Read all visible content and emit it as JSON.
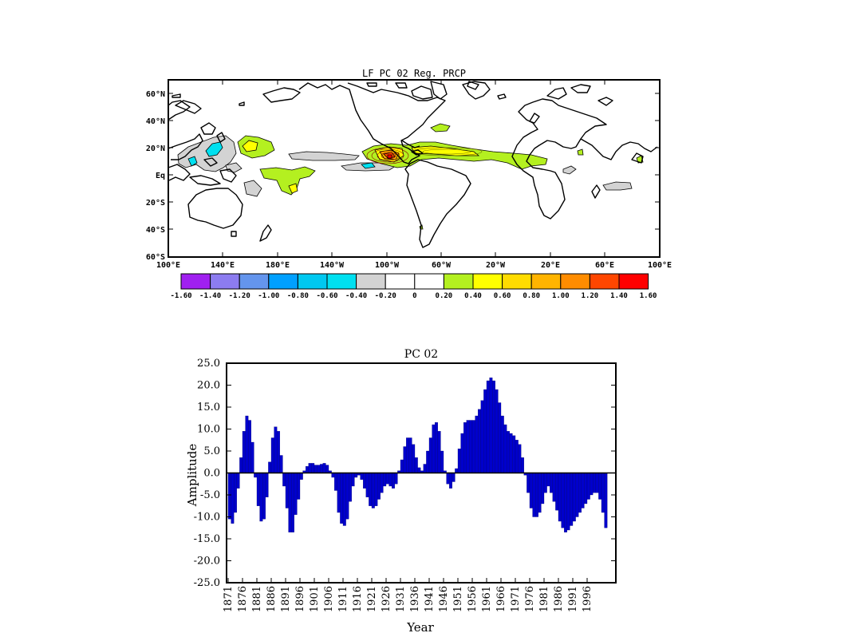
{
  "map_panel": {
    "title": "LF PC 02 Reg. PRCP",
    "lat_labels": [
      "60°N",
      "40°N",
      "20°N",
      "Eq",
      "20°S",
      "40°S",
      "60°S"
    ],
    "lon_labels": [
      "100°E",
      "140°E",
      "180°E",
      "140°W",
      "100°W",
      "60°W",
      "20°W",
      "20°E",
      "60°E",
      "100°E"
    ],
    "colorbar": {
      "colors": [
        "#a020f0",
        "#8c7cf0",
        "#6495ed",
        "#00a0ff",
        "#00c8f0",
        "#00e0f0",
        "#d3d3d3",
        "#ffffff",
        "#ffffff",
        "#b4f020",
        "#ffff00",
        "#ffdc00",
        "#ffb400",
        "#ff8c00",
        "#ff4600",
        "#ff0000"
      ],
      "tick_labels": [
        "-1.60",
        "-1.40",
        "-1.20",
        "-1.00",
        "-0.80",
        "-0.60",
        "-0.40",
        "-0.20",
        "0",
        "0.20",
        "0.40",
        "0.60",
        "0.80",
        "1.00",
        "1.20",
        "1.40",
        "1.60"
      ]
    }
  },
  "chart_data": {
    "type": "bar",
    "title": "PC 02",
    "xlabel": "Year",
    "ylabel": "Amplitude",
    "ylim": [
      -25,
      25
    ],
    "ytick_labels": [
      "25.0",
      "20.0",
      "15.0",
      "10.0",
      "5.0",
      "0.0",
      "-5.0",
      "-10.0",
      "-15.0",
      "-20.0",
      "-25.0"
    ],
    "xtick_labels": [
      "1871",
      "1876",
      "1881",
      "1886",
      "1891",
      "1896",
      "1901",
      "1906",
      "1911",
      "1916",
      "1921",
      "1926",
      "1931",
      "1936",
      "1941",
      "1946",
      "1951",
      "1956",
      "1961",
      "1966",
      "1971",
      "1976",
      "1981",
      "1986",
      "1991",
      "1996"
    ],
    "start_year": 1871,
    "bar_color": "#0000cc",
    "values": [
      -10.5,
      -11.5,
      -9,
      -3.5,
      3.5,
      9.5,
      13,
      12,
      7,
      -1,
      -7.5,
      -11,
      -10.5,
      -5.5,
      2.5,
      8,
      10.5,
      9.5,
      4,
      -3,
      -8,
      -13.5,
      -13.5,
      -9.5,
      -6,
      -1.5,
      0.5,
      1.5,
      2.2,
      2.2,
      1.8,
      1.8,
      2,
      2.2,
      1.8,
      0.5,
      -1,
      -4,
      -9,
      -11.5,
      -12,
      -10.5,
      -6.5,
      -3,
      -1,
      -0.5,
      -1.5,
      -3.5,
      -5.5,
      -7.5,
      -8,
      -7.5,
      -6,
      -4.5,
      -3,
      -2.5,
      -3,
      -3.5,
      -2.5,
      0.5,
      3,
      6,
      8,
      8,
      6.5,
      3.5,
      1.2,
      0.5,
      2,
      5,
      8,
      11,
      11.5,
      9.5,
      5,
      0.5,
      -2.5,
      -3.5,
      -2,
      1,
      5.5,
      9,
      11.5,
      12,
      12,
      12,
      13,
      14.5,
      16.5,
      19,
      21,
      21.7,
      21,
      19,
      16,
      13,
      11,
      9.5,
      9,
      8.5,
      7.5,
      6.5,
      3.5,
      -0.5,
      -4.5,
      -8,
      -10,
      -10,
      -9,
      -7,
      -4.5,
      -3,
      -4.5,
      -6.5,
      -8.5,
      -11,
      -12.5,
      -13.5,
      -13,
      -12,
      -11,
      -10,
      -9,
      -8,
      -7,
      -6,
      -5,
      -4.5,
      -4.5,
      -6,
      -9,
      -12.5
    ]
  }
}
